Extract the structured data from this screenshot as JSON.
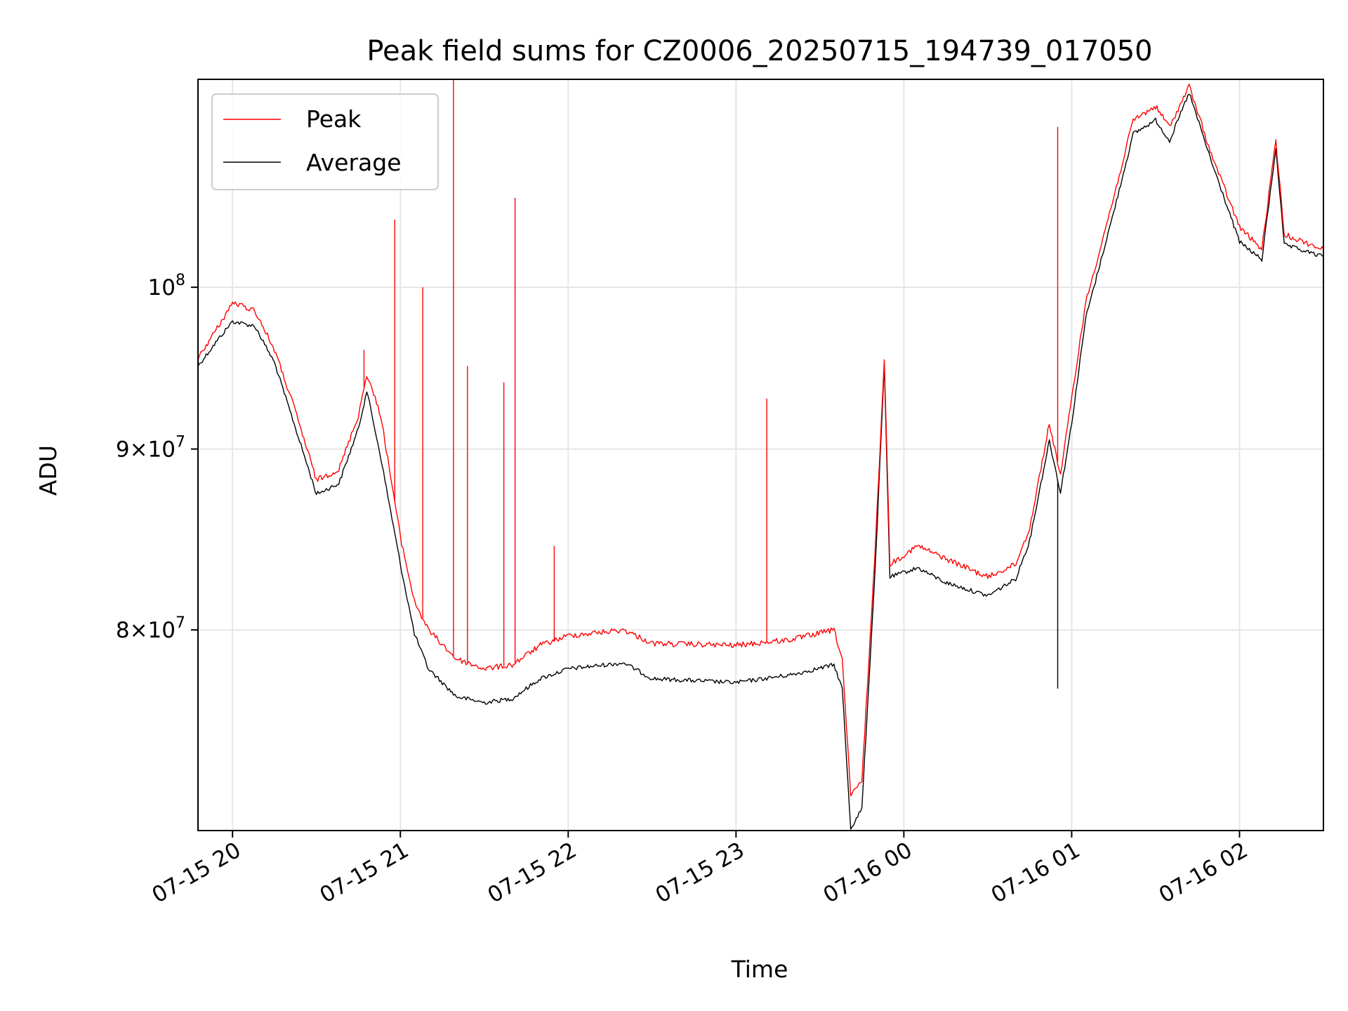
{
  "chart_data": {
    "type": "line",
    "title": "Peak field sums for CZ0006_20250715_194739_017050",
    "xlabel": "Time",
    "ylabel": "ADU",
    "y_scale": "log",
    "grid": true,
    "legend_position": "top-left",
    "xlim": [
      "2025-07-15 19:47:39",
      "2025-07-16 02:30"
    ],
    "ylim": [
      70200000,
      114500000
    ],
    "x_ticks": [
      "07-15 20",
      "07-15 21",
      "07-15 22",
      "07-15 23",
      "07-16 00",
      "07-16 01",
      "07-16 02"
    ],
    "y_ticks": [
      {
        "value": 80000000,
        "base": "8",
        "exp": "7"
      },
      {
        "value": 90000000,
        "base": "9",
        "exp": "7"
      },
      {
        "value": 100000000,
        "base": "",
        "exp": "8"
      }
    ],
    "series": [
      {
        "name": "Peak",
        "color": "#ff0000",
        "points": [
          [
            "2025-07-15 19:47:39",
            95500000
          ],
          [
            "2025-07-15 19:55",
            97500000
          ],
          [
            "2025-07-15 20:00",
            99000000
          ],
          [
            "2025-07-15 20:08",
            98500000
          ],
          [
            "2025-07-15 20:15",
            96000000
          ],
          [
            "2025-07-15 20:22",
            92500000
          ],
          [
            "2025-07-15 20:30",
            88200000
          ],
          [
            "2025-07-15 20:38",
            88800000
          ],
          [
            "2025-07-15 20:45",
            92000000
          ],
          [
            "2025-07-15 20:48",
            94500000
          ],
          [
            "2025-07-15 20:53",
            92000000
          ],
          [
            "2025-07-15 21:00",
            85000000
          ],
          [
            "2025-07-15 21:05",
            81500000
          ],
          [
            "2025-07-15 21:10",
            80000000
          ],
          [
            "2025-07-15 21:20",
            78500000
          ],
          [
            "2025-07-15 21:30",
            78000000
          ],
          [
            "2025-07-15 21:40",
            78200000
          ],
          [
            "2025-07-15 21:50",
            79200000
          ],
          [
            "2025-07-15 22:00",
            79700000
          ],
          [
            "2025-07-15 22:20",
            80000000
          ],
          [
            "2025-07-15 22:30",
            79300000
          ],
          [
            "2025-07-15 23:00",
            79200000
          ],
          [
            "2025-07-15 23:20",
            79500000
          ],
          [
            "2025-07-15 23:35",
            80000000
          ],
          [
            "2025-07-15 23:38",
            78500000
          ],
          [
            "2025-07-15 23:41",
            71800000
          ],
          [
            "2025-07-15 23:45",
            72500000
          ],
          [
            "2025-07-15 23:50",
            85000000
          ],
          [
            "2025-07-15 23:53",
            95500000
          ],
          [
            "2025-07-15 23:55",
            83500000
          ],
          [
            "2025-07-16 00:05",
            84500000
          ],
          [
            "2025-07-16 00:15",
            83800000
          ],
          [
            "2025-07-16 00:30",
            82800000
          ],
          [
            "2025-07-16 00:40",
            83500000
          ],
          [
            "2025-07-16 00:45",
            85500000
          ],
          [
            "2025-07-16 00:52",
            91500000
          ],
          [
            "2025-07-16 00:56",
            88500000
          ],
          [
            "2025-07-16 01:00",
            93000000
          ],
          [
            "2025-07-16 01:05",
            99000000
          ],
          [
            "2025-07-16 01:15",
            106000000
          ],
          [
            "2025-07-16 01:22",
            111500000
          ],
          [
            "2025-07-16 01:30",
            112500000
          ],
          [
            "2025-07-16 01:35",
            111000000
          ],
          [
            "2025-07-16 01:42",
            114000000
          ],
          [
            "2025-07-16 01:50",
            109000000
          ],
          [
            "2025-07-16 02:00",
            104000000
          ],
          [
            "2025-07-16 02:08",
            102500000
          ],
          [
            "2025-07-16 02:13",
            110000000
          ],
          [
            "2025-07-16 02:16",
            103500000
          ],
          [
            "2025-07-16 02:30",
            102500000
          ]
        ],
        "spikes": [
          [
            "2025-07-15 20:47",
            96000000
          ],
          [
            "2025-07-15 20:58",
            104500000
          ],
          [
            "2025-07-15 21:08",
            100000000
          ],
          [
            "2025-07-15 21:19",
            114500000
          ],
          [
            "2025-07-15 21:24",
            95000000
          ],
          [
            "2025-07-15 21:37",
            94000000
          ],
          [
            "2025-07-15 21:41",
            106000000
          ],
          [
            "2025-07-15 21:55",
            84500000
          ],
          [
            "2025-07-15 23:11",
            93000000
          ],
          [
            "2025-07-16 00:55",
            111000000
          ]
        ]
      },
      {
        "name": "Average",
        "color": "#000000",
        "points": [
          [
            "2025-07-15 19:47:39",
            95000000
          ],
          [
            "2025-07-15 19:55",
            96700000
          ],
          [
            "2025-07-15 20:00",
            97800000
          ],
          [
            "2025-07-15 20:08",
            97500000
          ],
          [
            "2025-07-15 20:15",
            95200000
          ],
          [
            "2025-07-15 20:22",
            91500000
          ],
          [
            "2025-07-15 20:30",
            87400000
          ],
          [
            "2025-07-15 20:38",
            88000000
          ],
          [
            "2025-07-15 20:45",
            91200000
          ],
          [
            "2025-07-15 20:48",
            93500000
          ],
          [
            "2025-07-15 20:53",
            89500000
          ],
          [
            "2025-07-15 21:00",
            83500000
          ],
          [
            "2025-07-15 21:05",
            79800000
          ],
          [
            "2025-07-15 21:10",
            78000000
          ],
          [
            "2025-07-15 21:20",
            76600000
          ],
          [
            "2025-07-15 21:30",
            76300000
          ],
          [
            "2025-07-15 21:40",
            76500000
          ],
          [
            "2025-07-15 21:50",
            77500000
          ],
          [
            "2025-07-15 22:00",
            78000000
          ],
          [
            "2025-07-15 22:20",
            78300000
          ],
          [
            "2025-07-15 22:30",
            77500000
          ],
          [
            "2025-07-15 23:00",
            77300000
          ],
          [
            "2025-07-15 23:20",
            77700000
          ],
          [
            "2025-07-15 23:35",
            78200000
          ],
          [
            "2025-07-15 23:38",
            77000000
          ],
          [
            "2025-07-15 23:41",
            70300000
          ],
          [
            "2025-07-15 23:45",
            71200000
          ],
          [
            "2025-07-15 23:50",
            84000000
          ],
          [
            "2025-07-15 23:53",
            95000000
          ],
          [
            "2025-07-15 23:55",
            82800000
          ],
          [
            "2025-07-16 00:05",
            83300000
          ],
          [
            "2025-07-16 00:15",
            82500000
          ],
          [
            "2025-07-16 00:30",
            81800000
          ],
          [
            "2025-07-16 00:40",
            82700000
          ],
          [
            "2025-07-16 00:45",
            84800000
          ],
          [
            "2025-07-16 00:52",
            90500000
          ],
          [
            "2025-07-16 00:56",
            87500000
          ],
          [
            "2025-07-16 01:00",
            91500000
          ],
          [
            "2025-07-16 01:05",
            98000000
          ],
          [
            "2025-07-16 01:15",
            105000000
          ],
          [
            "2025-07-16 01:22",
            110500000
          ],
          [
            "2025-07-16 01:30",
            111500000
          ],
          [
            "2025-07-16 01:35",
            110000000
          ],
          [
            "2025-07-16 01:42",
            113500000
          ],
          [
            "2025-07-16 01:50",
            108500000
          ],
          [
            "2025-07-16 02:00",
            103000000
          ],
          [
            "2025-07-16 02:08",
            101800000
          ],
          [
            "2025-07-16 02:13",
            109500000
          ],
          [
            "2025-07-16 02:16",
            102800000
          ],
          [
            "2025-07-16 02:30",
            102000000
          ]
        ],
        "spikes": [
          [
            "2025-07-16 00:55",
            77000000
          ]
        ]
      }
    ]
  }
}
